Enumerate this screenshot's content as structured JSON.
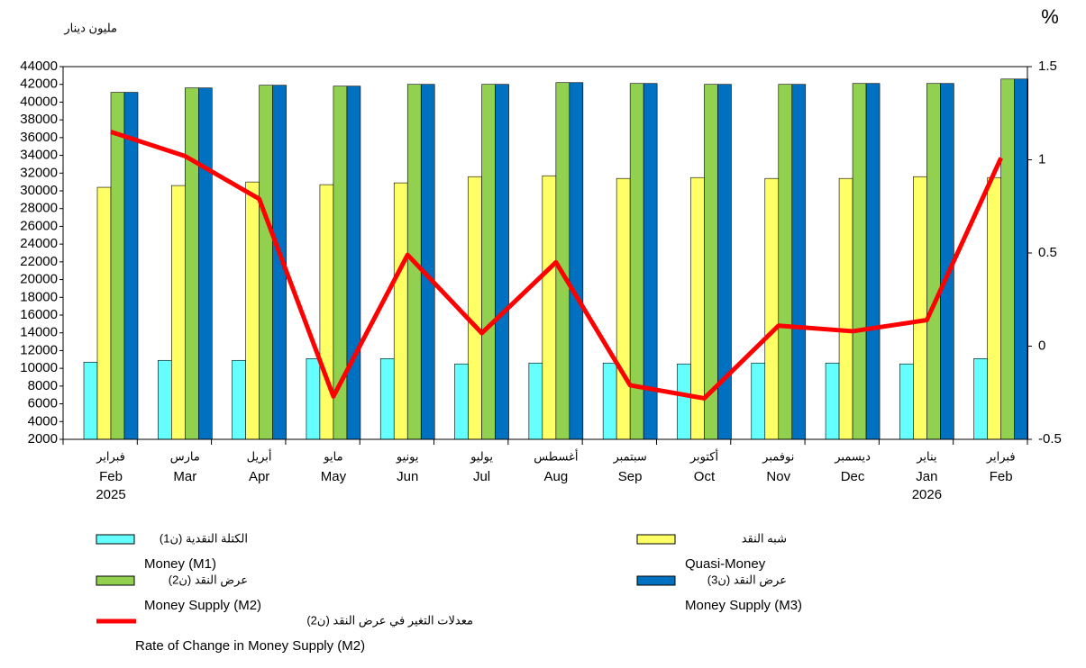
{
  "chart_data": {
    "type": "bar",
    "unit_label": "مليون دينار",
    "y2_unit_label": "%",
    "y2_color": "#ff0000",
    "categories": [
      "Feb",
      "Mar",
      "Apr",
      "May",
      "Jun",
      "Jul",
      "Aug",
      "Sep",
      "Oct",
      "Nov",
      "Dec",
      "Jan",
      "Feb"
    ],
    "categories_ar": [
      "فبراير",
      "مارس",
      "أبريل",
      "مايو",
      "يونيو",
      "يوليو",
      "أغسطس",
      "سبتمبر",
      "أكتوبر",
      "نوفمبر",
      "ديسمبر",
      "يناير",
      "فبراير"
    ],
    "category_years": [
      "2025",
      null,
      null,
      null,
      null,
      null,
      null,
      null,
      null,
      null,
      null,
      "2026",
      null
    ],
    "ylim": [
      2000,
      44000
    ],
    "yticks": [
      2000,
      4000,
      6000,
      8000,
      10000,
      12000,
      14000,
      16000,
      18000,
      20000,
      22000,
      24000,
      26000,
      28000,
      30000,
      32000,
      34000,
      36000,
      38000,
      40000,
      42000,
      44000
    ],
    "y2lim": [
      -0.5,
      1.5
    ],
    "y2ticks": [
      -0.5,
      0,
      0.5,
      1,
      1.5
    ],
    "series": [
      {
        "name": "Money (M1)",
        "name_ar": "الكتلة النقدية (ن1)",
        "color": "#66ffff",
        "values": [
          10700,
          10900,
          10900,
          11100,
          11100,
          10500,
          10600,
          10600,
          10500,
          10600,
          10600,
          10500,
          11100
        ]
      },
      {
        "name": "Quasi-Money",
        "name_ar": "شبه النقد",
        "color": "#ffff66",
        "values": [
          30400,
          30600,
          31000,
          30700,
          30900,
          31600,
          31700,
          31400,
          31500,
          31400,
          31400,
          31600,
          31500
        ]
      },
      {
        "name": "Money Supply (M2)",
        "name_ar": "عرض النقد (ن2)",
        "color": "#92d050",
        "values": [
          41100,
          41600,
          41900,
          41800,
          42000,
          42000,
          42200,
          42100,
          42000,
          42000,
          42100,
          42100,
          42600
        ]
      },
      {
        "name": "Money Supply (M3)",
        "name_ar": "عرض النقد (ن3)",
        "color": "#0070c0",
        "values": [
          41100,
          41600,
          41900,
          41800,
          42000,
          42000,
          42200,
          42100,
          42000,
          42000,
          42100,
          42100,
          42600
        ]
      },
      {
        "name": "Rate of Change in Money Supply (M2)",
        "name_ar": "معدلات التغير في عرض النقد (ن2)",
        "type": "line",
        "axis": "y2",
        "color": "#ff0000",
        "values": [
          1.15,
          1.02,
          0.79,
          -0.27,
          0.49,
          0.07,
          0.45,
          -0.21,
          -0.28,
          0.11,
          0.08,
          0.14,
          1.01
        ]
      }
    ]
  }
}
